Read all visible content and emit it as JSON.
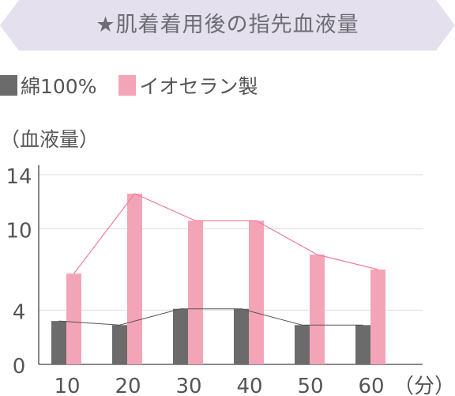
{
  "title": "★肌着着用後の指先血液量",
  "legend": {
    "items": [
      {
        "label": "綿100%",
        "color": "#6b6b6b"
      },
      {
        "label": "イオセラン製",
        "color": "#f4a4b7"
      }
    ]
  },
  "colors": {
    "banner": "#e4e0ee",
    "grid": "#dddddd",
    "axis": "#444444",
    "cotton": "#6b6b6b",
    "ioceran": "#f4a4b7",
    "ioceran_line": "#f07f98",
    "cotton_line": "#555555"
  },
  "chart_data": {
    "type": "bar",
    "title": "★肌着着用後の指先血液量",
    "ylabel": "（血液量）",
    "xlabel_suffix": "（分）",
    "categories": [
      "10",
      "20",
      "30",
      "40",
      "50",
      "60"
    ],
    "yticks": [
      "0",
      "4",
      "10",
      "14"
    ],
    "ylim": [
      0,
      14
    ],
    "grid": true,
    "legend_position": "top-left",
    "series": [
      {
        "name": "綿100%",
        "values": [
          3.2,
          2.9,
          4.1,
          4.1,
          2.9,
          2.9
        ]
      },
      {
        "name": "イオセラン製",
        "values": [
          6.7,
          12.6,
          10.6,
          10.6,
          8.1,
          7.0
        ]
      }
    ]
  }
}
